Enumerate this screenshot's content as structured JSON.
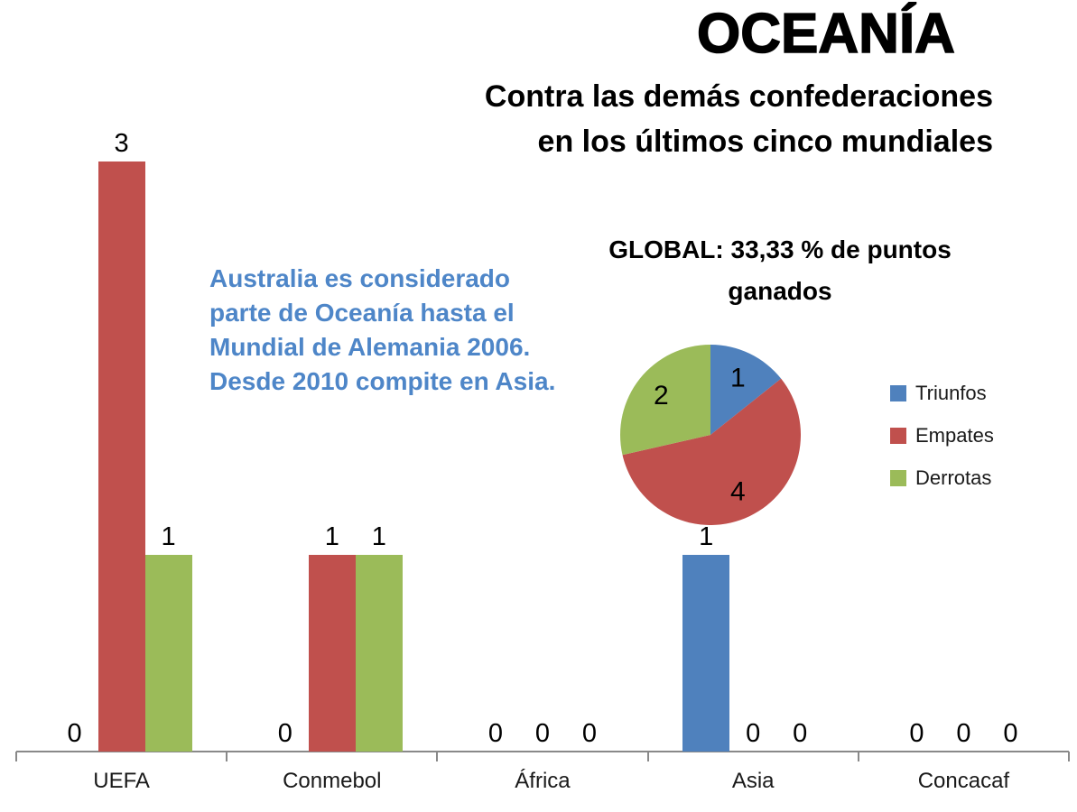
{
  "title": "OCEANÍA",
  "subtitle": {
    "line1": "Contra las demás confederaciones",
    "line2": "en los últimos cinco mundiales"
  },
  "annotation": {
    "color": "#4E86C8",
    "lines": [
      "Australia es considerado",
      "parte de Oceanía hasta el",
      "Mundial de Alemania 2006.",
      "Desde 2010 compite en Asia."
    ]
  },
  "pie_title": {
    "line1": "GLOBAL: 33,33 % de puntos",
    "line2": "ganados"
  },
  "legend": {
    "items": [
      {
        "label": "Triunfos",
        "color": "#4F81BD"
      },
      {
        "label": "Empates",
        "color": "#C0504D"
      },
      {
        "label": "Derrotas",
        "color": "#9BBB59"
      }
    ]
  },
  "colors": {
    "triunfos": "#4F81BD",
    "empates": "#C0504D",
    "derrotas": "#9BBB59",
    "axis": "#898989",
    "annotation_text": "#4E86C8"
  },
  "chart_data": [
    {
      "type": "bar",
      "title": "Contra las demás confederaciones en los últimos cinco mundiales",
      "categories": [
        "UEFA",
        "Conmebol",
        "África",
        "Asia",
        "Concacaf"
      ],
      "series": [
        {
          "name": "Triunfos",
          "color": "#4F81BD",
          "values": [
            0,
            0,
            0,
            1,
            0
          ]
        },
        {
          "name": "Empates",
          "color": "#C0504D",
          "values": [
            3,
            1,
            0,
            0,
            0
          ]
        },
        {
          "name": "Derrotas",
          "color": "#9BBB59",
          "values": [
            1,
            1,
            0,
            0,
            0
          ]
        }
      ],
      "ylim": [
        0,
        3
      ],
      "data_labels": true,
      "grid": false,
      "legend_position": "right"
    },
    {
      "type": "pie",
      "title": "GLOBAL: 33,33 % de puntos ganados",
      "labels": [
        "Triunfos",
        "Empates",
        "Derrotas"
      ],
      "values": [
        1,
        4,
        2
      ],
      "colors": [
        "#4F81BD",
        "#C0504D",
        "#9BBB59"
      ],
      "start_angle": "top",
      "direction": "clockwise",
      "data_labels": true
    }
  ]
}
